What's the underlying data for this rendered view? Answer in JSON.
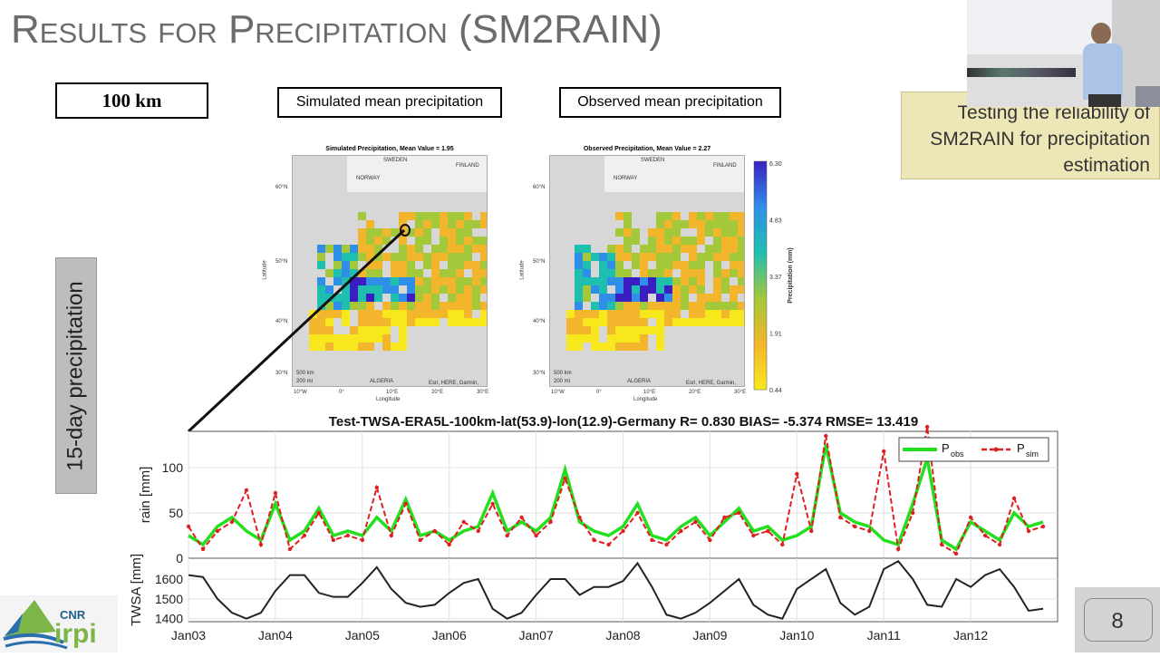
{
  "slide": {
    "title": "Results for Precipitation (SM2RAIN)",
    "resolution_label": "100 km",
    "sim_label": "Simulated mean precipitation",
    "obs_label": "Observed mean precipitation",
    "side_label": "15-day precipitation",
    "note": "Testing the reliability of SM2RAIN for precipitation estimation",
    "page_number": "8",
    "logo_text": [
      "CNR",
      "irpi"
    ]
  },
  "maps": {
    "sim_title": "Simulated Precipitation, Mean Value = 1.95",
    "obs_title": "Observed Precipitation, Mean Value = 2.27",
    "lat_ticks": [
      "60°N",
      "50°N",
      "40°N",
      "30°N"
    ],
    "lon_ticks": [
      "10°W",
      "0°",
      "10°E",
      "20°E",
      "30°E"
    ],
    "xlabel": "Longitude",
    "ylabel": "Latitude",
    "countries": [
      "SWEDEN",
      "FINLAND",
      "NORWAY",
      "ALGERIA"
    ],
    "scale_km": "500 km",
    "scale_mi": "200 mi",
    "attribution": "Esri, HERE, Garmin, USGS",
    "colorbar": {
      "ticks": [
        "6.30",
        "4.83",
        "3.37",
        "1.91",
        "0.44"
      ],
      "label": "Precipitation (mm)",
      "colors": [
        "#3b1ec2",
        "#2f8fe8",
        "#1fbfb0",
        "#a3c83a",
        "#f3b52b",
        "#f7e81e"
      ]
    }
  },
  "chart_data": {
    "type": "line",
    "title": "Test-TWSA-ERA5L-100km-lat(53.9)-lon(12.9)-Germany  R= 0.830 BIAS= -5.374 RMSE= 13.419",
    "x_ticks": [
      "Jan03",
      "Jan04",
      "Jan05",
      "Jan06",
      "Jan07",
      "Jan08",
      "Jan09",
      "Jan10",
      "Jan11",
      "Jan12"
    ],
    "xlim": [
      "2003-01",
      "2013-01"
    ],
    "grid": true,
    "legend_position": "top-right",
    "x": [
      "2003-01",
      "2003-03",
      "2003-05",
      "2003-07",
      "2003-09",
      "2003-11",
      "2004-01",
      "2004-03",
      "2004-05",
      "2004-07",
      "2004-09",
      "2004-11",
      "2005-01",
      "2005-03",
      "2005-05",
      "2005-07",
      "2005-09",
      "2005-11",
      "2006-01",
      "2006-03",
      "2006-05",
      "2006-07",
      "2006-09",
      "2006-11",
      "2007-01",
      "2007-03",
      "2007-05",
      "2007-07",
      "2007-09",
      "2007-11",
      "2008-01",
      "2008-03",
      "2008-05",
      "2008-07",
      "2008-09",
      "2008-11",
      "2009-01",
      "2009-03",
      "2009-05",
      "2009-07",
      "2009-09",
      "2009-11",
      "2010-01",
      "2010-03",
      "2010-05",
      "2010-07",
      "2010-09",
      "2010-11",
      "2011-01",
      "2011-03",
      "2011-05",
      "2011-07",
      "2011-09",
      "2011-11",
      "2012-01",
      "2012-03",
      "2012-05",
      "2012-07",
      "2012-09",
      "2012-11"
    ],
    "panels": [
      {
        "ylabel": "rain [mm]",
        "ylim": [
          0,
          140
        ],
        "y_ticks": [
          "0",
          "50",
          "100"
        ],
        "series": [
          {
            "name": "P_obs",
            "name_main": "P",
            "name_sub": "obs",
            "color": "#22e01e",
            "style": "solid",
            "values": [
              25,
              15,
              35,
              45,
              30,
              20,
              60,
              20,
              30,
              55,
              25,
              30,
              25,
              45,
              30,
              65,
              25,
              30,
              20,
              30,
              35,
              72,
              30,
              40,
              30,
              45,
              98,
              40,
              30,
              25,
              35,
              60,
              25,
              20,
              35,
              45,
              25,
              40,
              55,
              30,
              35,
              20,
              25,
              35,
              125,
              50,
              40,
              35,
              20,
              15,
              60,
              110,
              20,
              10,
              40,
              30,
              20,
              50,
              35,
              40
            ]
          },
          {
            "name": "P_sim",
            "name_main": "P",
            "name_sub": "sim",
            "color": "#e02020",
            "style": "dashed-markers",
            "values": [
              35,
              10,
              30,
              40,
              75,
              15,
              72,
              10,
              25,
              50,
              20,
              25,
              20,
              78,
              25,
              60,
              20,
              30,
              15,
              40,
              30,
              60,
              25,
              45,
              25,
              40,
              88,
              45,
              20,
              15,
              30,
              50,
              20,
              15,
              30,
              40,
              20,
              45,
              50,
              25,
              30,
              15,
              93,
              30,
              135,
              45,
              35,
              30,
              118,
              10,
              50,
              145,
              15,
              5,
              45,
              25,
              15,
              66,
              30,
              35
            ]
          }
        ]
      },
      {
        "ylabel": "TWSA [mm]",
        "ylim": [
          1385,
          1705
        ],
        "y_ticks": [
          "1400",
          "1500",
          "1600"
        ],
        "series": [
          {
            "color": "#222222",
            "style": "solid",
            "values": [
              1620,
              1610,
              1500,
              1430,
              1400,
              1430,
              1540,
              1620,
              1620,
              1530,
              1510,
              1510,
              1580,
              1660,
              1550,
              1480,
              1460,
              1470,
              1530,
              1580,
              1600,
              1450,
              1400,
              1430,
              1520,
              1600,
              1600,
              1520,
              1560,
              1560,
              1590,
              1680,
              1560,
              1420,
              1400,
              1430,
              1480,
              1540,
              1600,
              1470,
              1420,
              1400,
              1550,
              1600,
              1650,
              1480,
              1420,
              1460,
              1650,
              1690,
              1600,
              1470,
              1460,
              1600,
              1560,
              1620,
              1650,
              1560,
              1440,
              1450
            ]
          }
        ]
      }
    ]
  }
}
